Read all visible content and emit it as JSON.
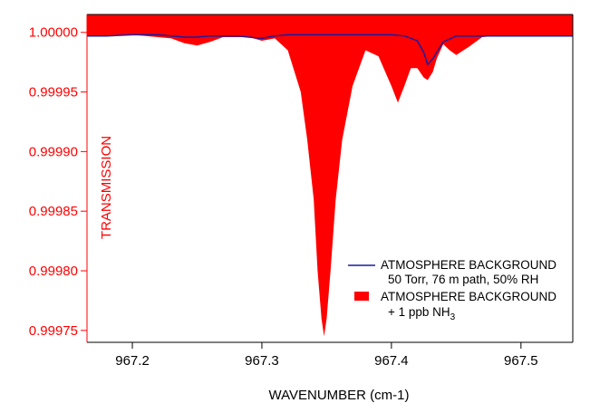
{
  "chart_data": {
    "type": "area",
    "xlabel": "WAVENUMBER (cm-1)",
    "ylabel": "TRANSMISSION",
    "xlim": [
      967.165,
      967.54
    ],
    "ylim": [
      0.99974,
      1.000015
    ],
    "xticks": [
      "967.2",
      "967.3",
      "967.4",
      "967.5"
    ],
    "xtick_values": [
      967.2,
      967.3,
      967.4,
      967.5
    ],
    "yticks": [
      "1.00000",
      "0.99995",
      "0.99990",
      "0.99985",
      "0.99980",
      "0.99975"
    ],
    "ytick_values": [
      1.0,
      0.99995,
      0.9999,
      0.99985,
      0.9998,
      0.99975
    ],
    "grid": false,
    "legend_position": "bottom-right",
    "colors": {
      "ammonia_fill": "#ff0000",
      "background_line": "#1a1aa0",
      "y_axis": "#ff0000",
      "frame": "#000000"
    },
    "series": [
      {
        "name": "ATMOSPHERE BACKGROUND",
        "name_line2": "50 Torr, 76 m path, 50% RH",
        "kind": "line",
        "x": [
          967.165,
          967.18,
          967.2,
          967.22,
          967.24,
          967.25,
          967.26,
          967.28,
          967.3,
          967.31,
          967.32,
          967.34,
          967.36,
          967.38,
          967.4,
          967.41,
          967.42,
          967.425,
          967.428,
          967.432,
          967.44,
          967.45,
          967.46,
          967.48,
          967.5,
          967.52,
          967.54
        ],
        "y": [
          0.999997,
          0.999997,
          0.999998,
          0.999998,
          0.999996,
          0.999996,
          0.999997,
          0.999997,
          0.999995,
          0.999997,
          0.999998,
          0.999998,
          0.999998,
          0.999998,
          0.999998,
          0.999997,
          0.999993,
          0.999983,
          0.999973,
          0.999978,
          0.999992,
          0.999997,
          0.999997,
          0.999997,
          0.999997,
          0.999997,
          0.999997
        ]
      },
      {
        "name": "ATMOSPHERE BACKGROUND",
        "name_line2": "+ 1 ppb NH3",
        "kind": "area",
        "x": [
          967.165,
          967.2,
          967.23,
          967.24,
          967.25,
          967.26,
          967.27,
          967.29,
          967.3,
          967.31,
          967.32,
          967.33,
          967.335,
          967.34,
          967.343,
          967.346,
          967.348,
          967.35,
          967.353,
          967.357,
          967.362,
          967.37,
          967.38,
          967.39,
          967.4,
          967.405,
          967.41,
          967.415,
          967.42,
          967.425,
          967.428,
          967.432,
          967.435,
          967.44,
          967.445,
          967.45,
          967.46,
          967.47,
          967.48,
          967.5,
          967.54
        ],
        "y": [
          0.999997,
          0.999998,
          0.999995,
          0.999991,
          0.999989,
          0.999992,
          0.999996,
          0.999996,
          0.999993,
          0.999995,
          0.999985,
          0.99995,
          0.99991,
          0.99986,
          0.9998,
          0.99976,
          0.999745,
          0.99976,
          0.9998,
          0.99986,
          0.99991,
          0.999955,
          0.999985,
          0.99998,
          0.999955,
          0.999941,
          0.999955,
          0.99997,
          0.99997,
          0.999962,
          0.99996,
          0.999967,
          0.999978,
          0.99999,
          0.999985,
          0.999981,
          0.999988,
          0.999996,
          0.999997,
          0.999997,
          0.999997
        ]
      }
    ],
    "legend": [
      {
        "line1": "ATMOSPHERE BACKGROUND",
        "line2": "50 Torr, 76 m path, 50% RH",
        "swatch": "line"
      },
      {
        "line1": "ATMOSPHERE BACKGROUND",
        "line2_prefix": "+ 1 ppb NH",
        "line2_subscript": "3",
        "swatch": "box"
      }
    ]
  }
}
